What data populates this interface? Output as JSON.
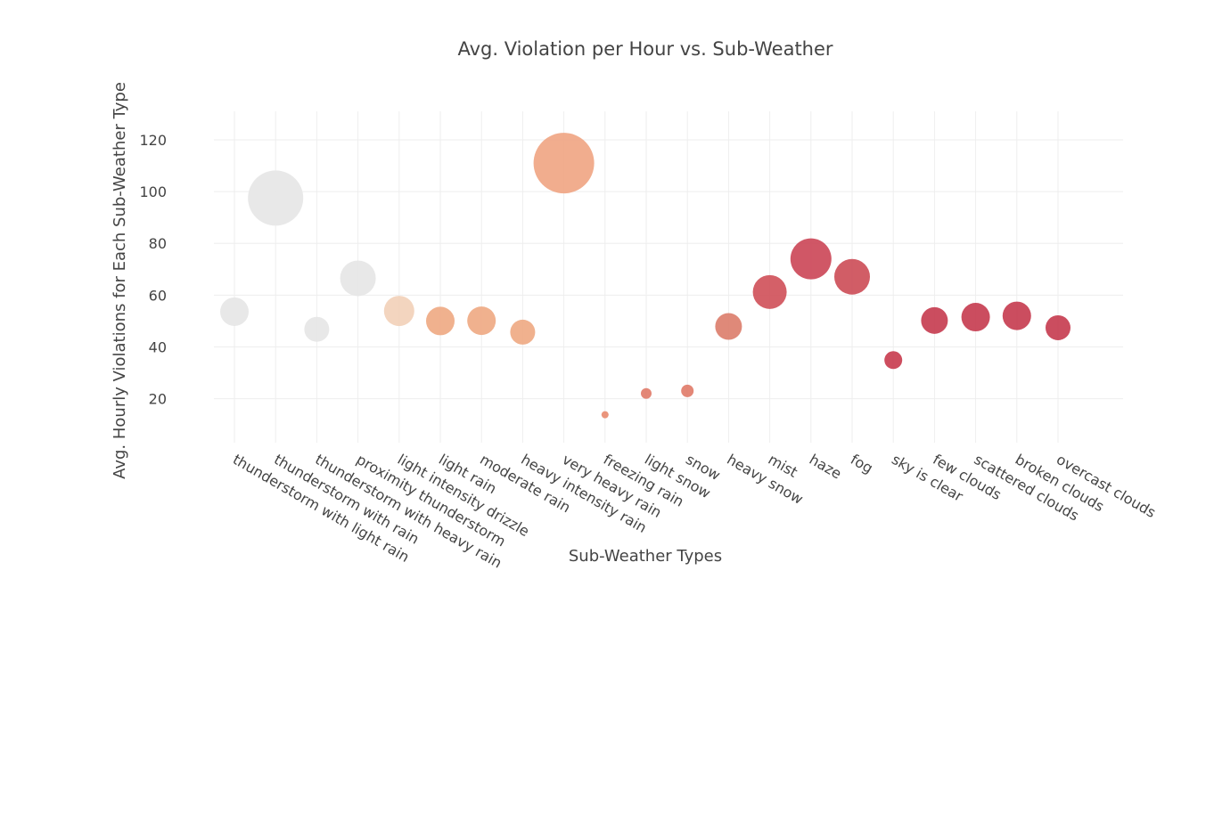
{
  "chart_data": {
    "type": "scatter",
    "title": "Avg. Violation per Hour vs. Sub-Weather",
    "xlabel": "Sub-Weather Types",
    "ylabel": "Avg. Hourly Violations for Each Sub-Weather Type",
    "ylim": [
      3,
      131
    ],
    "yticks": [
      20,
      40,
      60,
      80,
      100,
      120
    ],
    "grid": true,
    "legend": "none",
    "categories": [
      "thunderstorm with light rain",
      "thunderstorm with rain",
      "thunderstorm with heavy rain",
      "proximity thunderstorm",
      "light intensity drizzle",
      "light rain",
      "moderate rain",
      "heavy intensity rain",
      "very heavy rain",
      "freezing rain",
      "light snow",
      "snow",
      "heavy snow",
      "mist",
      "haze",
      "fog",
      "sky is clear",
      "few clouds",
      "scattered clouds",
      "broken clouds",
      "overcast clouds"
    ],
    "values": [
      53.6,
      97.5,
      46.8,
      66.5,
      53.9,
      50.0,
      50.1,
      45.7,
      111.0,
      13.8,
      22.0,
      23.0,
      47.9,
      61.2,
      74.0,
      67.1,
      34.9,
      50.2,
      51.5,
      52.0,
      47.4
    ],
    "marker_sizes": [
      16,
      31,
      14,
      20,
      17,
      16,
      16,
      14,
      34,
      4,
      6,
      7,
      15,
      19,
      23,
      20,
      10,
      15,
      16,
      16,
      14
    ],
    "colors": [
      "#e6e6e6",
      "#e6e6e6",
      "#e6e6e6",
      "#e6e6e6",
      "#f2d0b8",
      "#eea882",
      "#eea882",
      "#eea882",
      "#f0a482",
      "#e88a6e",
      "#e07a68",
      "#e07a68",
      "#dc7c6a",
      "#cf4f58",
      "#cb4555",
      "#cc4b55",
      "#c83a4c",
      "#c53a4e",
      "#c53a4e",
      "#c53a4e",
      "#c53a4e"
    ]
  }
}
